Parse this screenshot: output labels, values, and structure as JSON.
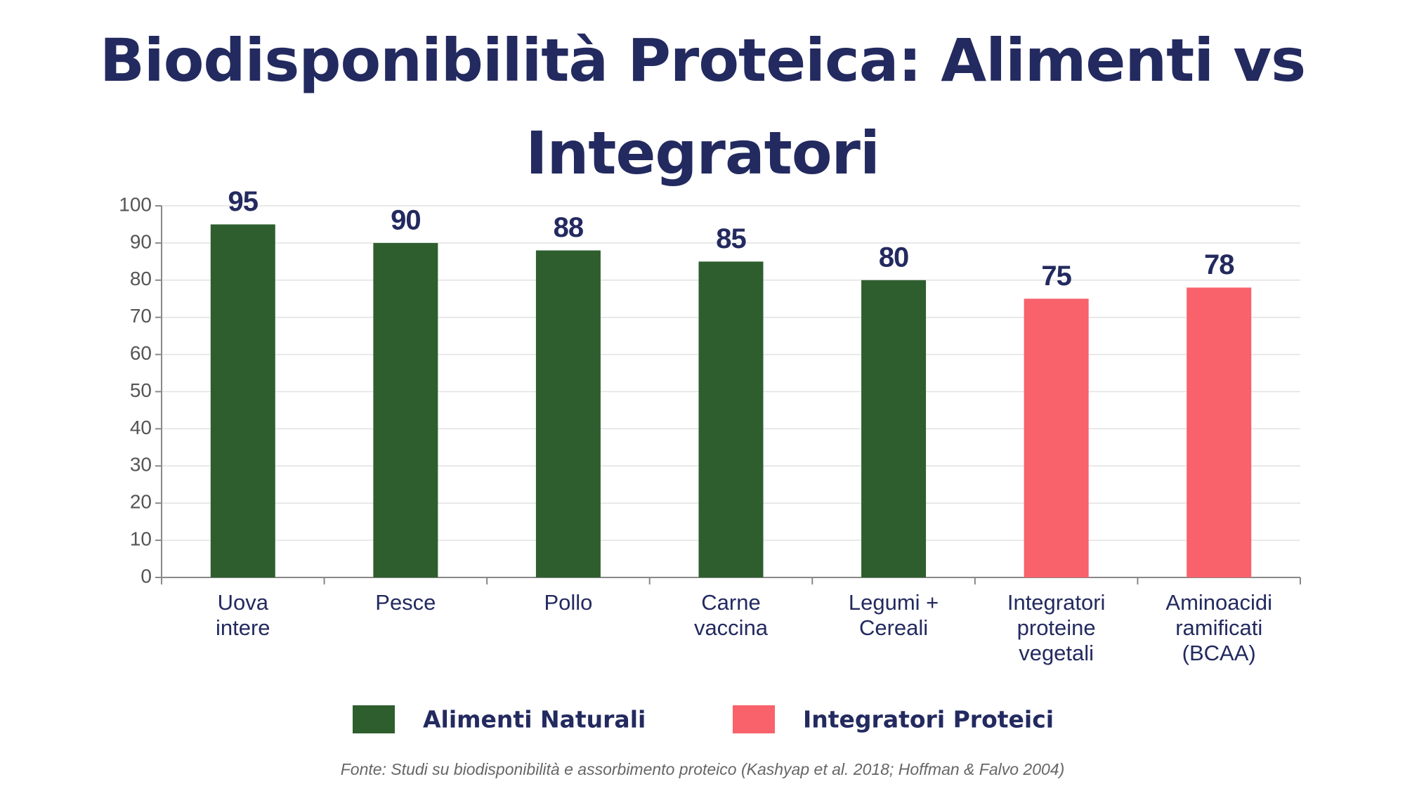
{
  "chart_data": {
    "type": "bar",
    "title": "Biodisponibilità Proteica: Alimenti vs Integratori",
    "categories": [
      "Uova\nintere",
      "Pesce",
      "Pollo",
      "Carne\nvaccina",
      "Legumi +\nCereali",
      "Integratori\nproteine\nvegetali",
      "Aminoacidi\nramificati\n(BCAA)"
    ],
    "series": [
      {
        "name": "Alimenti Naturali",
        "color": "#2e5e2e",
        "values": [
          95,
          90,
          88,
          85,
          80,
          null,
          null
        ]
      },
      {
        "name": "Integratori Proteici",
        "color": "#f9616b",
        "values": [
          null,
          null,
          null,
          null,
          null,
          75,
          78
        ]
      }
    ],
    "ylim": [
      0,
      100
    ],
    "yticks": [
      0,
      10,
      20,
      30,
      40,
      50,
      60,
      70,
      80,
      90,
      100
    ],
    "grid": true,
    "legend": "bottom",
    "source": "Fonte: Studi su biodisponibilità e assorbimento proteico (Kashyap et al. 2018; Hoffman & Falvo 2004)"
  }
}
